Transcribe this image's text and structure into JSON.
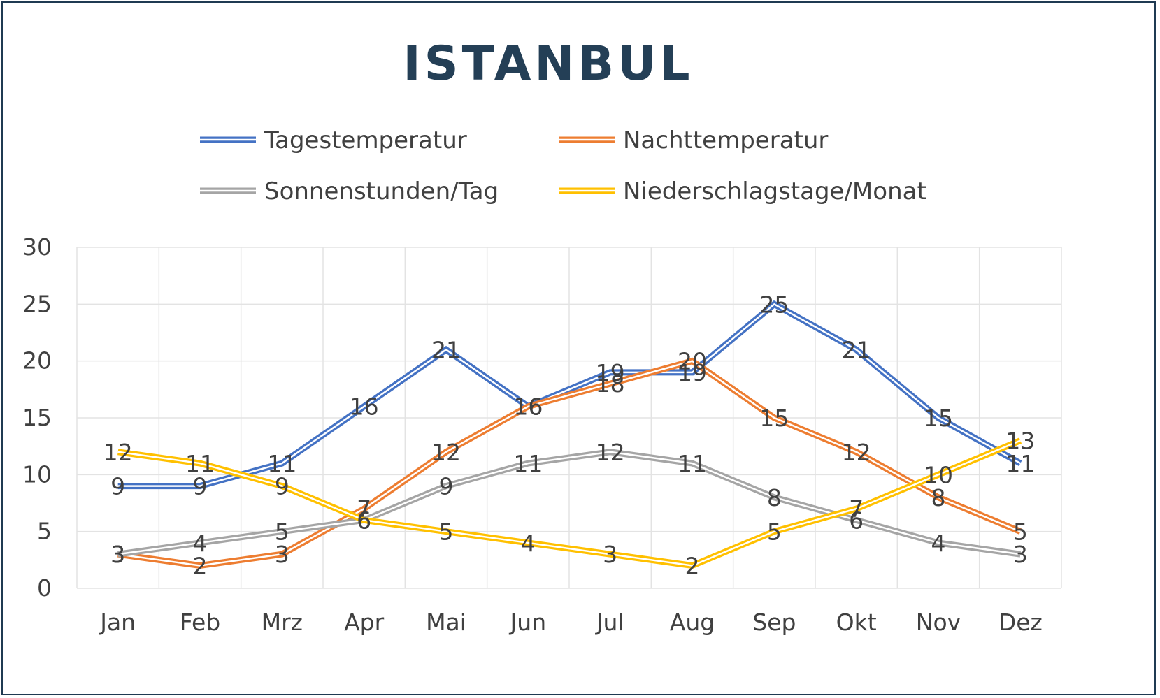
{
  "chart_data": {
    "type": "line",
    "title": "ISTANBUL",
    "categories": [
      "Jan",
      "Feb",
      "Mrz",
      "Apr",
      "Mai",
      "Jun",
      "Jul",
      "Aug",
      "Sep",
      "Okt",
      "Nov",
      "Dez"
    ],
    "ylim": [
      0,
      30
    ],
    "yticks": [
      0,
      5,
      10,
      15,
      20,
      25,
      30
    ],
    "grid": true,
    "legend_position": "top",
    "series": [
      {
        "name": "Tagestemperatur",
        "color": "#4472c4",
        "values": [
          9,
          9,
          11,
          16,
          21,
          16,
          19,
          19,
          25,
          21,
          15,
          11
        ]
      },
      {
        "name": "Nachttemperatur",
        "color": "#ed7d31",
        "values": [
          3,
          2,
          3,
          7,
          12,
          16,
          18,
          20,
          15,
          12,
          8,
          5
        ]
      },
      {
        "name": "Sonnenstunden/Tag",
        "color": "#a5a5a5",
        "values": [
          3,
          4,
          5,
          6,
          9,
          11,
          12,
          11,
          8,
          6,
          4,
          3
        ]
      },
      {
        "name": "Niederschlagstage/Monat",
        "color": "#ffc000",
        "values": [
          12,
          11,
          9,
          6,
          5,
          4,
          3,
          2,
          5,
          7,
          10,
          13
        ]
      }
    ]
  }
}
